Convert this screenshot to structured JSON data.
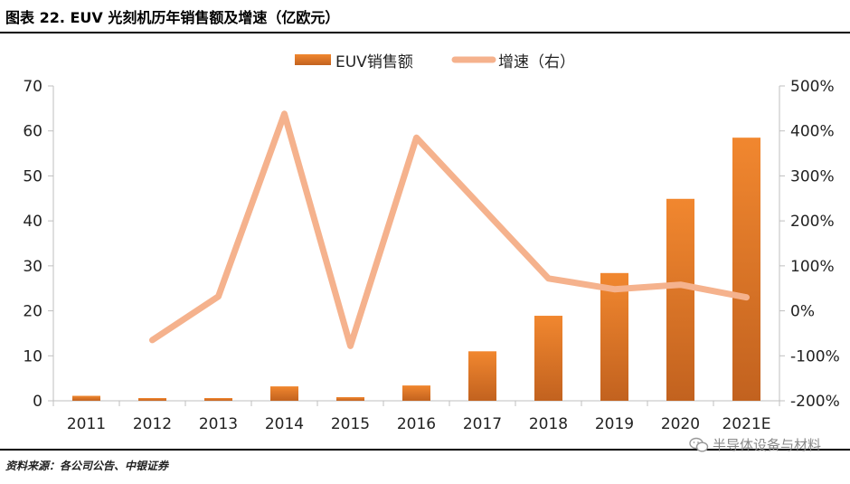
{
  "figure": {
    "title": "图表 22. EUV 光刻机历年销售额及增速（亿欧元）",
    "source": "资料来源：各公司公告、中银证券",
    "watermark": "半导体设备与材料",
    "watermark_icon": "wechat-icon"
  },
  "chart_data": {
    "type": "bar+line",
    "title": "EUV 光刻机历年销售额及增速（亿欧元）",
    "categories": [
      "2011",
      "2012",
      "2013",
      "2014",
      "2015",
      "2016",
      "2017",
      "2018",
      "2019",
      "2020",
      "2021E"
    ],
    "series": [
      {
        "name": "EUV销售额",
        "type": "bar",
        "axis": "left",
        "color": "#E3762A",
        "values": [
          1.1,
          0.6,
          0.6,
          3.2,
          0.8,
          3.4,
          11.0,
          18.9,
          28.4,
          44.9,
          58.5
        ]
      },
      {
        "name": "增速（右）",
        "type": "line",
        "axis": "right",
        "color": "#F5B28D",
        "values": [
          null,
          -65,
          32,
          438,
          -78,
          385,
          null,
          72,
          48,
          58,
          30
        ],
        "note": "2017 point approximate — drawn on the line between 2016 and 2018"
      }
    ],
    "y_left": {
      "min": 0,
      "max": 70,
      "ticks": [
        0,
        10,
        20,
        30,
        40,
        50,
        60,
        70
      ]
    },
    "y_right": {
      "min": -200,
      "max": 500,
      "ticks": [
        "-200%",
        "-100%",
        "0%",
        "100%",
        "200%",
        "300%",
        "400%",
        "500%"
      ]
    },
    "legend_position": "top-center",
    "grid": false
  }
}
